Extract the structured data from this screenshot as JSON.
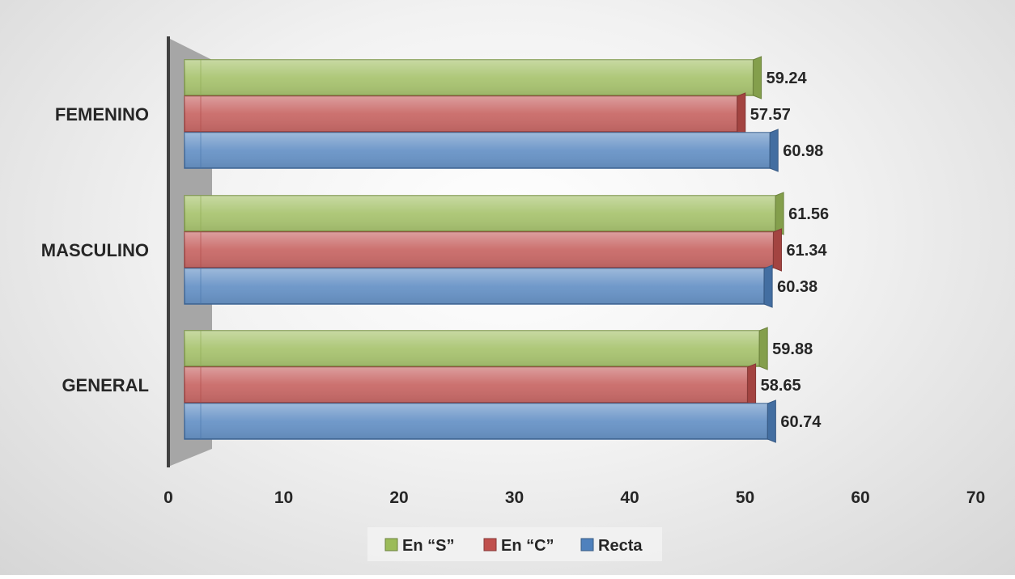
{
  "chart_data": {
    "type": "bar",
    "orientation": "horizontal",
    "categories": [
      "FEMENINO",
      "MASCULINO",
      "GENERAL"
    ],
    "series": [
      {
        "name": "En “S”",
        "color": "#9bbb59",
        "values": [
          59.24,
          61.56,
          59.88
        ]
      },
      {
        "name": "En “C”",
        "color": "#c0504d",
        "values": [
          57.57,
          61.34,
          58.65
        ]
      },
      {
        "name": "Recta",
        "color": "#4f81bd",
        "values": [
          60.98,
          60.38,
          60.74
        ]
      }
    ],
    "xlim": [
      0,
      70
    ],
    "x_ticks": [
      "0",
      "10",
      "20",
      "30",
      "40",
      "50",
      "60",
      "70"
    ],
    "legend_position": "bottom",
    "grid": false
  }
}
